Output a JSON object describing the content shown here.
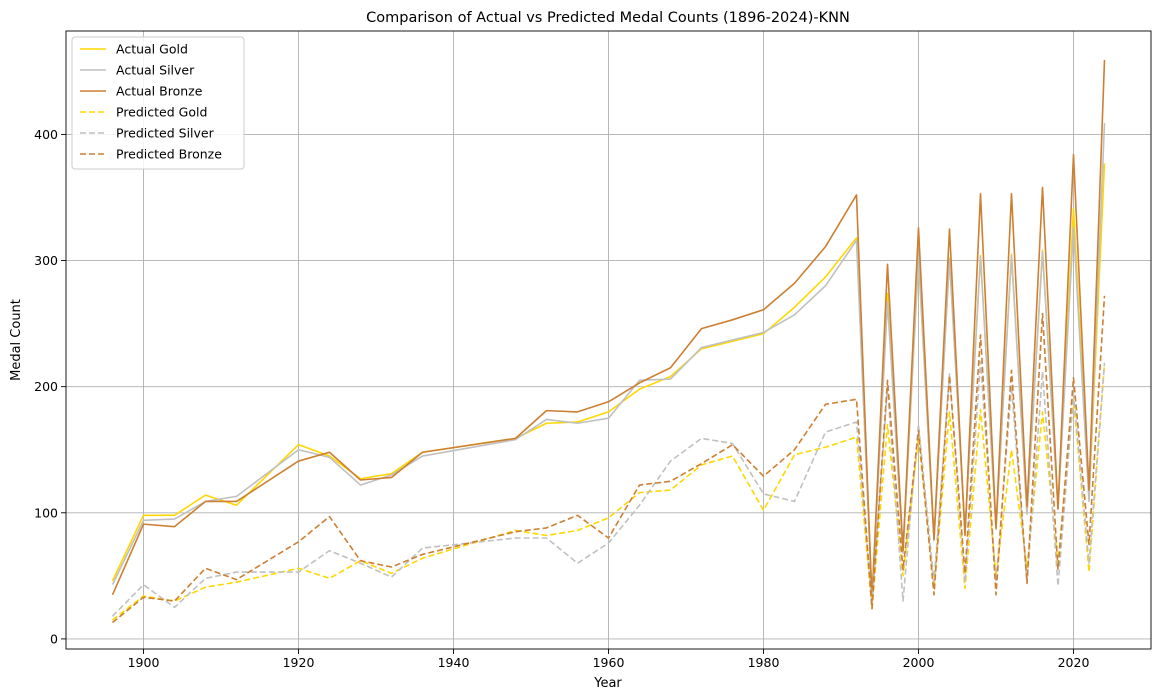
{
  "chart_data": {
    "type": "line",
    "title": "Comparison of Actual vs Predicted Medal Counts (1896-2024)-KNN",
    "xlabel": "Year",
    "ylabel": "Medal Count",
    "xlim": [
      1890,
      2030
    ],
    "ylim": [
      -8,
      482
    ],
    "xticks": [
      1900,
      1920,
      1940,
      1960,
      1980,
      2000,
      2020
    ],
    "yticks": [
      0,
      100,
      200,
      300,
      400
    ],
    "grid": true,
    "legend_position": "top-left",
    "x": [
      1896,
      1900,
      1904,
      1908,
      1912,
      1920,
      1924,
      1928,
      1932,
      1936,
      1948,
      1952,
      1956,
      1960,
      1964,
      1968,
      1972,
      1976,
      1980,
      1984,
      1988,
      1992,
      1994,
      1996,
      1998,
      2000,
      2002,
      2004,
      2006,
      2008,
      2010,
      2012,
      2014,
      2016,
      2018,
      2020,
      2022,
      2024
    ],
    "series": [
      {
        "name": "Actual Gold",
        "color": "#FFD700",
        "dash": false,
        "values": [
          46,
          98,
          98,
          114,
          106,
          154,
          145,
          127,
          131,
          148,
          159,
          171,
          172,
          180,
          198,
          208,
          230,
          236,
          242,
          263,
          287,
          318,
          33,
          274,
          69,
          301,
          79,
          302,
          85,
          304,
          87,
          305,
          99,
          308,
          104,
          341,
          111,
          377
        ]
      },
      {
        "name": "Actual Silver",
        "color": "#C0C0C0",
        "dash": false,
        "values": [
          43,
          94,
          95,
          109,
          113,
          150,
          144,
          122,
          130,
          145,
          158,
          174,
          171,
          175,
          205,
          206,
          231,
          237,
          243,
          257,
          280,
          316,
          32,
          267,
          68,
          303,
          78,
          301,
          85,
          303,
          87,
          304,
          99,
          307,
          103,
          326,
          109,
          409
        ]
      },
      {
        "name": "Actual Bronze",
        "color": "#CD7F32",
        "dash": false,
        "values": [
          35,
          91,
          89,
          109,
          109,
          141,
          148,
          126,
          128,
          148,
          159,
          181,
          180,
          188,
          203,
          215,
          246,
          253,
          261,
          282,
          311,
          352,
          30,
          297,
          70,
          326,
          79,
          325,
          82,
          353,
          88,
          353,
          105,
          358,
          103,
          384,
          118,
          459
        ]
      },
      {
        "name": "Predicted Gold",
        "color": "#FFD700",
        "dash": true,
        "values": [
          15,
          34,
          30,
          41,
          45,
          56,
          48,
          62,
          52,
          64,
          86,
          82,
          86,
          96,
          116,
          118,
          138,
          145,
          102,
          146,
          152,
          160,
          24,
          170,
          50,
          160,
          40,
          180,
          40,
          182,
          50,
          150,
          57,
          180,
          60,
          190,
          53,
          218
        ]
      },
      {
        "name": "Predicted Silver",
        "color": "#C0C0C0",
        "dash": true,
        "values": [
          18,
          43,
          25,
          48,
          53,
          53,
          70,
          60,
          49,
          72,
          80,
          80,
          60,
          76,
          106,
          141,
          159,
          155,
          115,
          109,
          164,
          172,
          27,
          200,
          30,
          170,
          45,
          210,
          45,
          220,
          45,
          200,
          45,
          212,
          42,
          194,
          60,
          219
        ]
      },
      {
        "name": "Predicted Bronze",
        "color": "#CD7F32",
        "dash": true,
        "values": [
          13,
          33,
          30,
          56,
          47,
          77,
          97,
          62,
          57,
          67,
          85,
          88,
          98,
          80,
          122,
          125,
          139,
          154,
          129,
          150,
          186,
          190,
          24,
          205,
          55,
          165,
          35,
          209,
          52,
          241,
          35,
          213,
          44,
          258,
          55,
          207,
          75,
          272
        ]
      }
    ]
  }
}
